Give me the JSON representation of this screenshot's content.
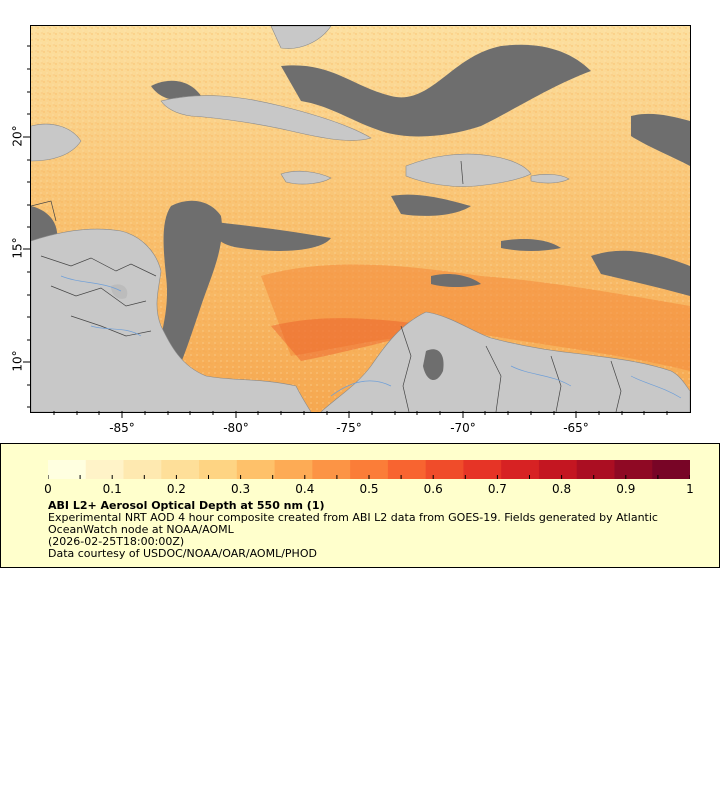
{
  "map": {
    "lat_labels": [
      "20°",
      "15°",
      "10°"
    ],
    "lon_labels": [
      "-85°",
      "-80°",
      "-75°",
      "-70°",
      "-65°"
    ],
    "colors": {
      "land": "#c8c8c8",
      "no_data": "#6e6e6e",
      "water_inland": "#bcbcbc",
      "aod_low": "#fff0c0",
      "aod_mid": "#f9b24a",
      "aod_high": "#e84020",
      "borders": "#555555",
      "rivers": "#6f9fd8"
    }
  },
  "legend": {
    "colorbar_labels": [
      "0",
      "0.1",
      "0.2",
      "0.3",
      "0.4",
      "0.5",
      "0.6",
      "0.7",
      "0.8",
      "0.9",
      "1"
    ],
    "colorbar_colors": [
      "#ffffe0",
      "#fff3c8",
      "#fee9b0",
      "#fedf99",
      "#fed483",
      "#fec16a",
      "#fdab55",
      "#fc9445",
      "#fb7d38",
      "#f86430",
      "#f04c2a",
      "#e63426",
      "#d72223",
      "#c41621",
      "#ab0e22",
      "#8f0924",
      "#780526"
    ],
    "title": "ABI L2+ Aerosol Optical Depth at 550 nm (1)",
    "line1": "Experimental NRT AOD 4 hour composite created from ABI L2 data from GOES-19. Fields generated by Atlantic OceanWatch node at NOAA/AOML",
    "line2": "(2026-02-25T18:00:00Z)",
    "line3": "Data courtesy of USDOC/NOAA/OAR/AOML/PHOD"
  }
}
